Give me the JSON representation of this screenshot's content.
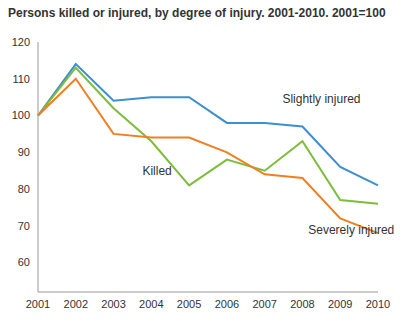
{
  "chart_data": {
    "type": "line",
    "title": "Persons killed or injured, by degree of injury. 2001-2010. 2001=100",
    "categories": [
      "2001",
      "2002",
      "2003",
      "2004",
      "2005",
      "2006",
      "2007",
      "2008",
      "2009",
      "2010"
    ],
    "series": [
      {
        "name": "Slightly injured",
        "color": "#3d8fcd",
        "values": [
          100,
          114,
          104,
          105,
          105,
          98,
          98,
          97,
          86,
          81
        ]
      },
      {
        "name": "Killed",
        "color": "#7cbd3c",
        "values": [
          100,
          113,
          102,
          93,
          81,
          88,
          85,
          93,
          77,
          76
        ]
      },
      {
        "name": "Severely injured",
        "color": "#f07f22",
        "values": [
          100,
          110,
          95,
          94,
          94,
          90,
          84,
          83,
          72,
          68
        ]
      }
    ],
    "ylim": [
      52,
      120
    ],
    "yticks": [
      60,
      70,
      80,
      90,
      100,
      110,
      120
    ],
    "grid": false
  }
}
